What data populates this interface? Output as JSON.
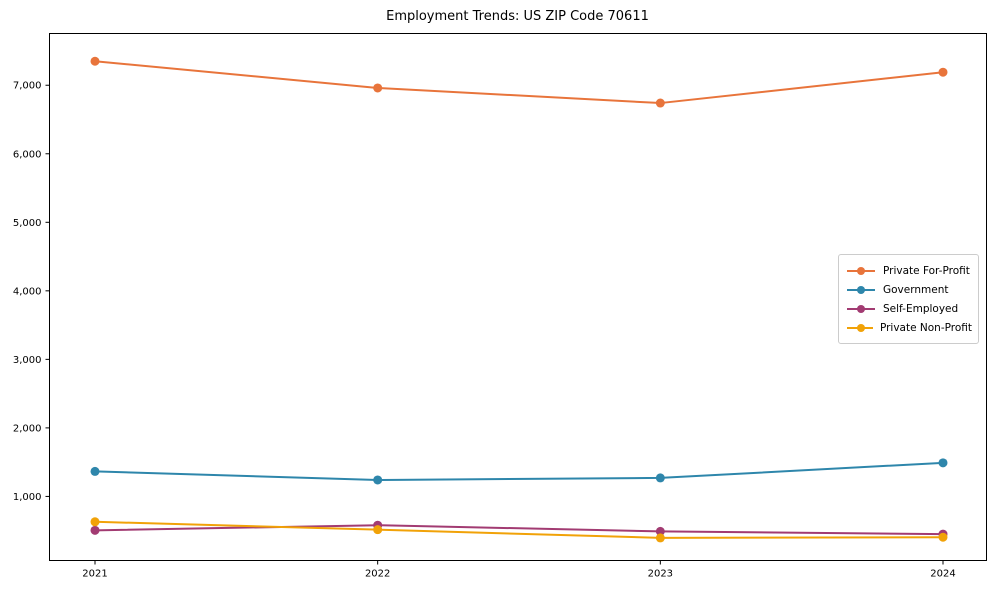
{
  "chart_data": {
    "type": "line",
    "title": "Employment Trends: US ZIP Code 70611",
    "categories": [
      "2021",
      "2022",
      "2023",
      "2024"
    ],
    "series": [
      {
        "name": "Private For-Profit",
        "color": "#e8743b",
        "values": [
          7350,
          6960,
          6740,
          7190
        ]
      },
      {
        "name": "Government",
        "color": "#2e86ab",
        "values": [
          1365,
          1240,
          1270,
          1490
        ]
      },
      {
        "name": "Self-Employed",
        "color": "#a23b72",
        "values": [
          505,
          580,
          490,
          450
        ]
      },
      {
        "name": "Private Non-Profit",
        "color": "#f1a208",
        "values": [
          630,
          515,
          395,
          405
        ]
      }
    ],
    "xlabel": "",
    "ylabel": "",
    "ylim": [
      65,
      7755
    ],
    "yticks": [
      1000,
      2000,
      3000,
      4000,
      5000,
      6000,
      7000
    ],
    "grid": false,
    "legend_position": "center-right",
    "marker": "circle",
    "axis_color": "#000000",
    "background": "#ffffff"
  }
}
